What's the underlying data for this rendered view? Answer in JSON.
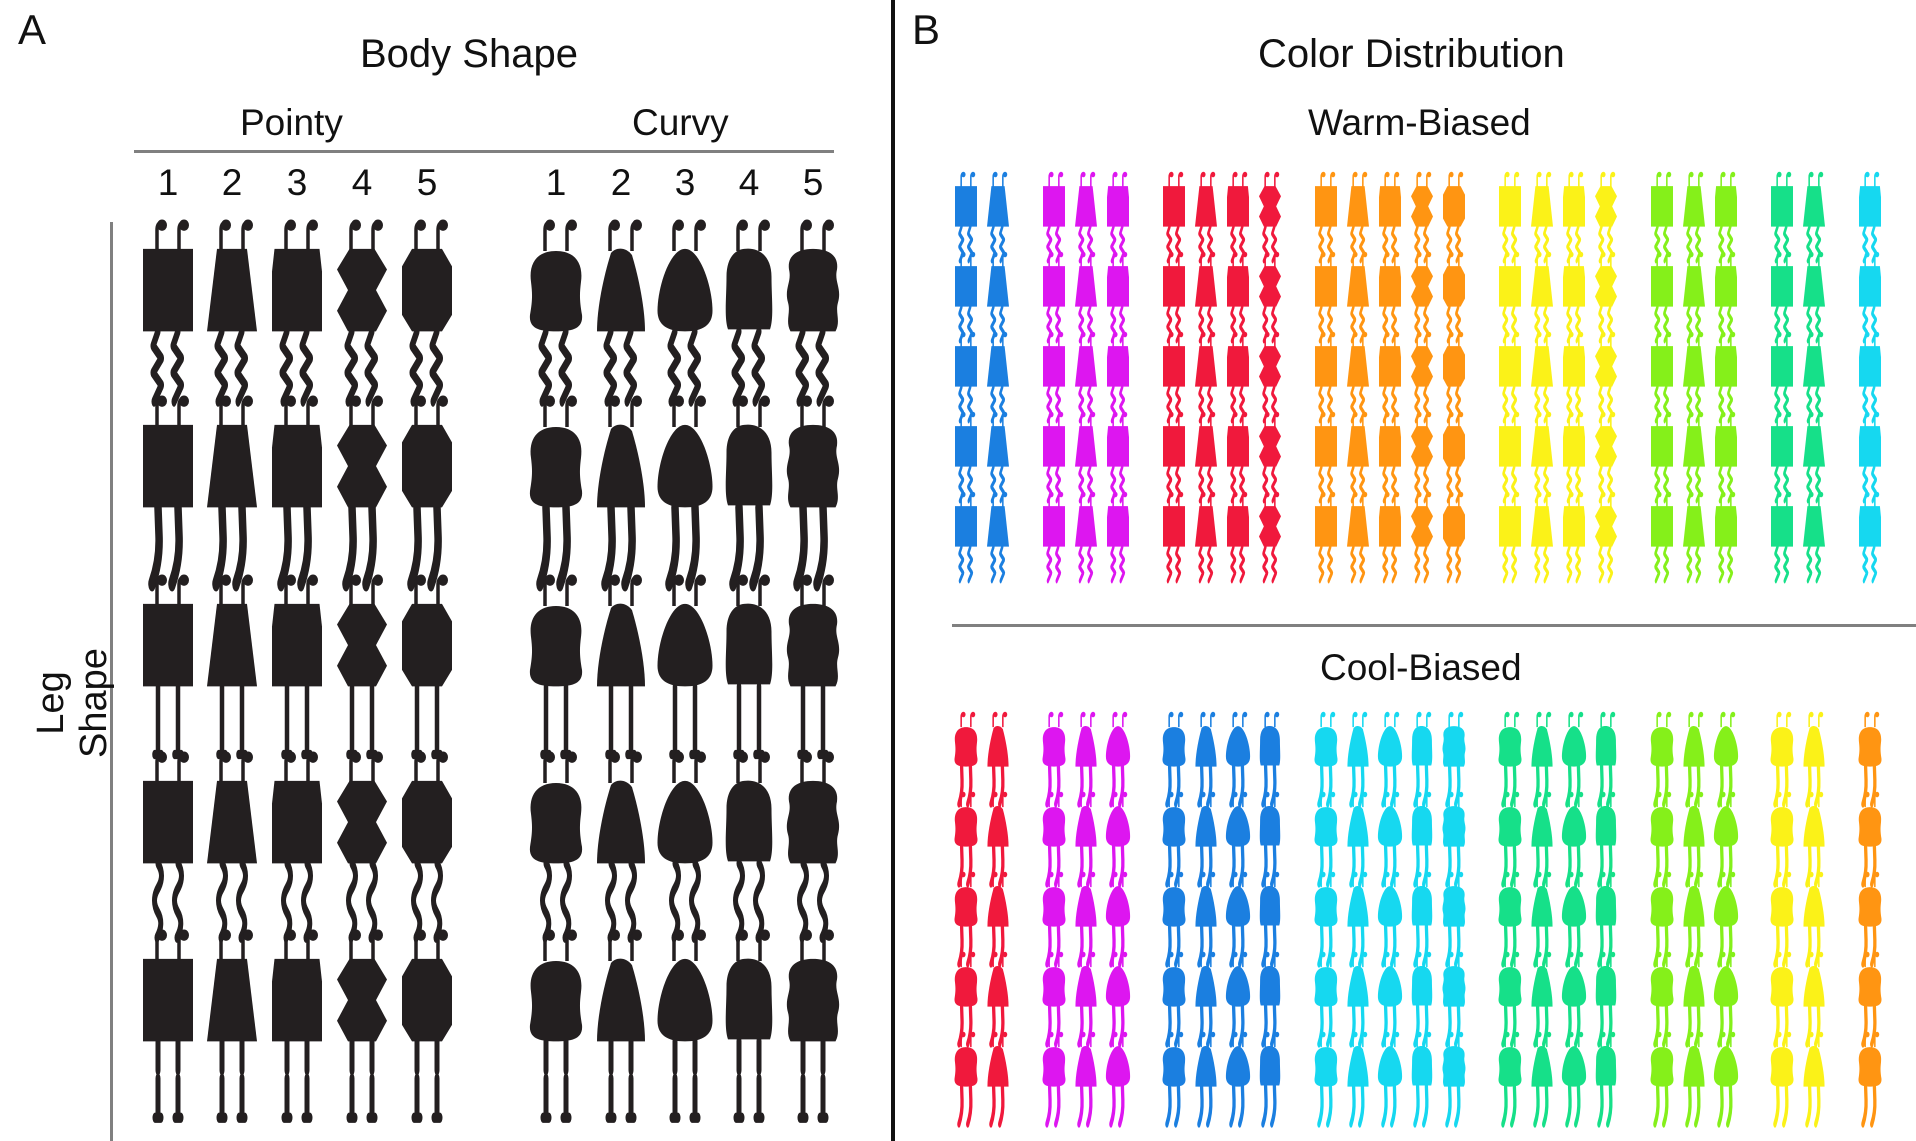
{
  "panel_a": {
    "letter": "A",
    "title": "Body Shape",
    "groups": [
      "Pointy",
      "Curvy"
    ],
    "column_numbers": [
      "1",
      "2",
      "3",
      "4",
      "5"
    ],
    "row_axis_label": "Leg Shape",
    "figure_color": "#231f20",
    "grid": {
      "pointy_bodies": [
        "rect",
        "trapezoid",
        "tapered",
        "hourglass",
        "octagon"
      ],
      "curvy_bodies": [
        "blob",
        "bullet",
        "egg",
        "bean",
        "wavy"
      ],
      "leg_styles": [
        "zigzag",
        "curved-thick",
        "straight-foot",
        "wave",
        "knobby"
      ]
    }
  },
  "panel_b": {
    "letter": "B",
    "title": "Color Distribution",
    "warm": {
      "label": "Warm-Biased",
      "legs": "zigzag",
      "groups": [
        {
          "color": "#1b7fe0",
          "count": 2,
          "bodies": [
            "rect",
            "trapezoid"
          ]
        },
        {
          "color": "#dd16f0",
          "count": 3,
          "bodies": [
            "rect",
            "trapezoid",
            "tapered"
          ]
        },
        {
          "color": "#f0193c",
          "count": 4,
          "bodies": [
            "rect",
            "trapezoid",
            "tapered",
            "hourglass"
          ]
        },
        {
          "color": "#ff9512",
          "count": 5,
          "bodies": [
            "rect",
            "trapezoid",
            "tapered",
            "hourglass",
            "octagon"
          ]
        },
        {
          "color": "#fbf218",
          "count": 4,
          "bodies": [
            "rect",
            "trapezoid",
            "tapered",
            "hourglass"
          ]
        },
        {
          "color": "#85f01a",
          "count": 3,
          "bodies": [
            "rect",
            "trapezoid",
            "tapered"
          ]
        },
        {
          "color": "#16e089",
          "count": 2,
          "bodies": [
            "rect",
            "trapezoid"
          ]
        },
        {
          "color": "#16d8f0",
          "count": 1,
          "bodies": [
            "tapered"
          ]
        }
      ]
    },
    "cool": {
      "label": "Cool-Biased",
      "legs": "curved-thick",
      "groups": [
        {
          "color": "#f0193c",
          "count": 2,
          "bodies": [
            "blob",
            "bullet"
          ]
        },
        {
          "color": "#dd16f0",
          "count": 3,
          "bodies": [
            "blob",
            "bullet",
            "egg"
          ]
        },
        {
          "color": "#1b7fe0",
          "count": 4,
          "bodies": [
            "blob",
            "bullet",
            "egg",
            "bean"
          ]
        },
        {
          "color": "#16d8f0",
          "count": 5,
          "bodies": [
            "blob",
            "bullet",
            "egg",
            "bean",
            "wavy"
          ]
        },
        {
          "color": "#16e089",
          "count": 4,
          "bodies": [
            "blob",
            "bullet",
            "egg",
            "bean"
          ]
        },
        {
          "color": "#85f01a",
          "count": 3,
          "bodies": [
            "blob",
            "bullet",
            "egg"
          ]
        },
        {
          "color": "#fbf218",
          "count": 2,
          "bodies": [
            "blob",
            "bullet"
          ]
        },
        {
          "color": "#ff9512",
          "count": 1,
          "bodies": [
            "blob"
          ]
        }
      ]
    }
  }
}
